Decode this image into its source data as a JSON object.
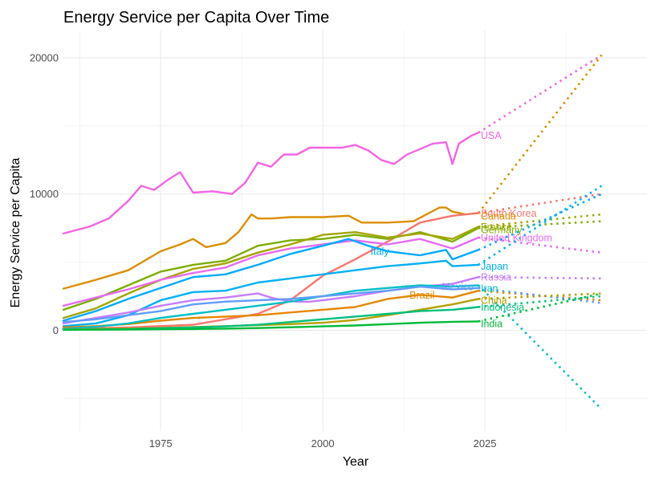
{
  "chart_data": {
    "type": "line",
    "title": "Energy Service per Capita Over Time",
    "xlabel": "Year",
    "ylabel": "Energy Service per Capita",
    "xlim": [
      1960,
      2050
    ],
    "ylim": [
      -7400,
      22000
    ],
    "x_ticks": [
      1975,
      2000,
      2025
    ],
    "y_ticks": [
      0,
      10000,
      20000
    ],
    "grid": true,
    "legend": "none (direct labels at series end)",
    "series": [
      {
        "name": "USA",
        "color": "#f564e3",
        "x": [
          1960,
          1964,
          1967,
          1970,
          1972,
          1974,
          1976,
          1978,
          1980,
          1983,
          1986,
          1988,
          1990,
          1992,
          1994,
          1996,
          1998,
          2000,
          2003,
          2005,
          2007,
          2009,
          2011,
          2013,
          2015,
          2017,
          2019,
          2020,
          2021,
          2023,
          2024
        ],
        "y": [
          7100,
          7600,
          8200,
          9500,
          10600,
          10300,
          11000,
          11600,
          10100,
          10200,
          10000,
          10800,
          12300,
          12000,
          12900,
          12900,
          13400,
          13400,
          13400,
          13600,
          13200,
          12500,
          12200,
          12900,
          13300,
          13700,
          13800,
          12200,
          13700,
          14300,
          14500
        ],
        "projection": {
          "x": [
            2024,
            2043
          ],
          "y": [
            14500,
            20200
          ]
        }
      },
      {
        "name": "Canada",
        "color": "#db8e00",
        "x": [
          1960,
          1965,
          1970,
          1975,
          1978,
          1980,
          1982,
          1985,
          1987,
          1989,
          1990,
          1992,
          1995,
          2000,
          2004,
          2006,
          2010,
          2014,
          2018,
          2019,
          2020,
          2022,
          2024
        ],
        "y": [
          3050,
          3700,
          4400,
          5800,
          6300,
          6700,
          6100,
          6400,
          7200,
          8500,
          8200,
          8200,
          8300,
          8300,
          8400,
          7900,
          7900,
          8000,
          9000,
          9000,
          8700,
          8500,
          8600
        ],
        "projection": {
          "x": [
            2024,
            2043
          ],
          "y": [
            8600,
            20200
          ]
        }
      },
      {
        "name": "South Korea",
        "color": "#f8766d",
        "x": [
          1960,
          1970,
          1980,
          1990,
          1995,
          2000,
          2005,
          2010,
          2015,
          2020,
          2024
        ],
        "y": [
          100,
          200,
          400,
          1200,
          2200,
          4000,
          5200,
          6500,
          7900,
          8400,
          8600
        ],
        "projection": {
          "x": [
            2024,
            2043
          ],
          "y": [
            8600,
            10000
          ]
        }
      },
      {
        "name": "Germany",
        "color": "#7cae00",
        "x": [
          1960,
          1965,
          1970,
          1975,
          1980,
          1985,
          1990,
          1995,
          2000,
          2005,
          2010,
          2015,
          2020,
          2024
        ],
        "y": [
          1500,
          2300,
          3300,
          4300,
          4800,
          5100,
          6200,
          6600,
          6700,
          7000,
          6700,
          7200,
          6500,
          7500
        ],
        "projection": {
          "x": [
            2024,
            2043
          ],
          "y": [
            7500,
            8000
          ]
        }
      },
      {
        "name": "France",
        "color": "#a3a500",
        "x": [
          1960,
          1965,
          1970,
          1975,
          1980,
          1985,
          1990,
          1995,
          2000,
          2005,
          2010,
          2015,
          2020,
          2024
        ],
        "y": [
          900,
          1600,
          2700,
          3700,
          4500,
          4900,
          5700,
          6300,
          7000,
          7200,
          6800,
          7100,
          6700,
          7600
        ],
        "projection": {
          "x": [
            2024,
            2043
          ],
          "y": [
            7600,
            8500
          ]
        }
      },
      {
        "name": "United Kingdom",
        "color": "#e76bf3",
        "x": [
          1960,
          1965,
          1970,
          1975,
          1980,
          1985,
          1990,
          1995,
          2000,
          2005,
          2010,
          2015,
          2020,
          2024
        ],
        "y": [
          1800,
          2400,
          3000,
          3700,
          4200,
          4600,
          5500,
          6000,
          6300,
          6600,
          6300,
          6700,
          6000,
          6800
        ],
        "projection": {
          "x": [
            2024,
            2043
          ],
          "y": [
            6800,
            5700
          ]
        }
      },
      {
        "name": "Japan",
        "color": "#00b0f6",
        "x": [
          1960,
          1965,
          1970,
          1975,
          1980,
          1985,
          1990,
          1995,
          2000,
          2005,
          2010,
          2015,
          2019,
          2020,
          2024
        ],
        "y": [
          300,
          500,
          1100,
          2200,
          2800,
          2900,
          3500,
          3800,
          4100,
          4400,
          4700,
          4900,
          5100,
          4700,
          4800
        ],
        "projection": {
          "x": [
            2024,
            2043
          ],
          "y": [
            4800,
            10600
          ]
        }
      },
      {
        "name": "Italy",
        "color": "#00a9ff",
        "x": [
          1960,
          1965,
          1970,
          1975,
          1980,
          1985,
          1990,
          1995,
          2000,
          2004,
          2007,
          2010,
          2015,
          2019,
          2020,
          2024
        ],
        "y": [
          700,
          1400,
          2300,
          3100,
          3900,
          4100,
          4800,
          5600,
          6200,
          6700,
          6200,
          5800,
          5500,
          5900,
          5200,
          5900
        ],
        "projection": {
          "x": [
            2024,
            2043
          ],
          "y": [
            5900,
            10000
          ]
        }
      },
      {
        "name": "Russia",
        "color": "#c77cff",
        "x": [
          1960,
          1965,
          1970,
          1975,
          1980,
          1985,
          1990,
          1992,
          1994,
          1996,
          1998,
          2000,
          2005,
          2010,
          2015,
          2020,
          2024
        ],
        "y": [
          500,
          900,
          1300,
          1800,
          2200,
          2400,
          2700,
          2400,
          2200,
          2100,
          2100,
          2200,
          2500,
          2900,
          3200,
          3400,
          3900
        ],
        "projection": {
          "x": [
            2024,
            2043
          ],
          "y": [
            3900,
            3800
          ]
        }
      },
      {
        "name": "Brazil",
        "color": "#e58700",
        "x": [
          1960,
          1965,
          1970,
          1975,
          1980,
          1985,
          1990,
          1995,
          2000,
          2005,
          2010,
          2015,
          2020,
          2024
        ],
        "y": [
          200,
          300,
          450,
          700,
          900,
          1000,
          1100,
          1300,
          1500,
          1700,
          2300,
          2600,
          2400,
          2900
        ],
        "projection": {
          "x": [
            2024,
            2043
          ],
          "y": [
            2900,
            2200
          ]
        }
      },
      {
        "name": "Iran",
        "color": "#00bfc4",
        "x": [
          1960,
          1965,
          1970,
          1975,
          1980,
          1985,
          1990,
          1995,
          2000,
          2005,
          2010,
          2015,
          2020,
          2024
        ],
        "y": [
          100,
          250,
          500,
          900,
          1200,
          1500,
          1800,
          2100,
          2500,
          2900,
          3100,
          3300,
          3200,
          3300
        ],
        "projection": {
          "x": [
            2024,
            2043
          ],
          "y": [
            3300,
            -5800
          ]
        }
      },
      {
        "name": "Mexico",
        "color": "#619cff",
        "x": [
          1960,
          1965,
          1970,
          1975,
          1980,
          1985,
          1990,
          1995,
          2000,
          2005,
          2010,
          2015,
          2020,
          2024
        ],
        "y": [
          600,
          800,
          1100,
          1400,
          1900,
          2100,
          2200,
          2300,
          2500,
          2700,
          2900,
          3200,
          3000,
          3100
        ],
        "projection": {
          "x": [
            2024,
            2043
          ],
          "y": [
            3100,
            2000
          ]
        }
      },
      {
        "name": "China",
        "color": "#b79f00",
        "x": [
          1960,
          1965,
          1970,
          1975,
          1980,
          1985,
          1990,
          1995,
          2000,
          2005,
          2010,
          2015,
          2020,
          2024
        ],
        "y": [
          50,
          80,
          120,
          170,
          230,
          300,
          380,
          450,
          550,
          750,
          1100,
          1500,
          1900,
          2300
        ],
        "projection": {
          "x": [
            2024,
            2043
          ],
          "y": [
            2300,
            2700
          ]
        }
      },
      {
        "name": "Indonesia",
        "color": "#00bf7d",
        "x": [
          1960,
          1965,
          1970,
          1975,
          1980,
          1985,
          1990,
          1995,
          2000,
          2005,
          2010,
          2015,
          2020,
          2024
        ],
        "y": [
          40,
          60,
          90,
          140,
          200,
          280,
          400,
          600,
          800,
          1000,
          1200,
          1400,
          1500,
          1700
        ],
        "projection": {
          "x": [
            2024,
            2043
          ],
          "y": [
            1700,
            2500
          ]
        }
      },
      {
        "name": "India",
        "color": "#00ba38",
        "x": [
          1960,
          1965,
          1970,
          1975,
          1980,
          1985,
          1990,
          1995,
          2000,
          2005,
          2010,
          2015,
          2020,
          2024
        ],
        "y": [
          30,
          40,
          55,
          70,
          90,
          120,
          160,
          220,
          280,
          350,
          450,
          550,
          620,
          650
        ],
        "projection": {
          "x": [
            2024,
            2043
          ],
          "y": [
            650,
            2700
          ]
        }
      }
    ],
    "end_labels": [
      {
        "text": "USA",
        "color": "#f564e3",
        "x": 2024,
        "y": 14300
      },
      {
        "text": "South Korea",
        "color": "#f8766d",
        "x": 2024,
        "y": 8600
      },
      {
        "text": "Canada",
        "color": "#db8e00",
        "x": 2024,
        "y": 8400
      },
      {
        "text": "France",
        "color": "#a3a500",
        "x": 2024,
        "y": 7600
      },
      {
        "text": "Germany",
        "color": "#7cae00",
        "x": 2024,
        "y": 7400
      },
      {
        "text": "United Kingdom",
        "color": "#e76bf3",
        "x": 2024,
        "y": 6800
      },
      {
        "text": "Italy",
        "color": "#00a9ff",
        "x": 2007,
        "y": 5800
      },
      {
        "text": "Japan",
        "color": "#00b0f6",
        "x": 2024,
        "y": 4700
      },
      {
        "text": "Russia",
        "color": "#c77cff",
        "x": 2024,
        "y": 3900
      },
      {
        "text": "Mexico",
        "color": "#619cff",
        "x": 2018,
        "y": 3200
      },
      {
        "text": "Iran",
        "color": "#00bfc4",
        "x": 2024,
        "y": 3100
      },
      {
        "text": "Brazil",
        "color": "#e58700",
        "x": 2013,
        "y": 2600
      },
      {
        "text": "China",
        "color": "#b79f00",
        "x": 2024,
        "y": 2200
      },
      {
        "text": "Indonesia",
        "color": "#00bf7d",
        "x": 2024,
        "y": 1700
      },
      {
        "text": "India",
        "color": "#00ba38",
        "x": 2024,
        "y": 500
      }
    ]
  }
}
